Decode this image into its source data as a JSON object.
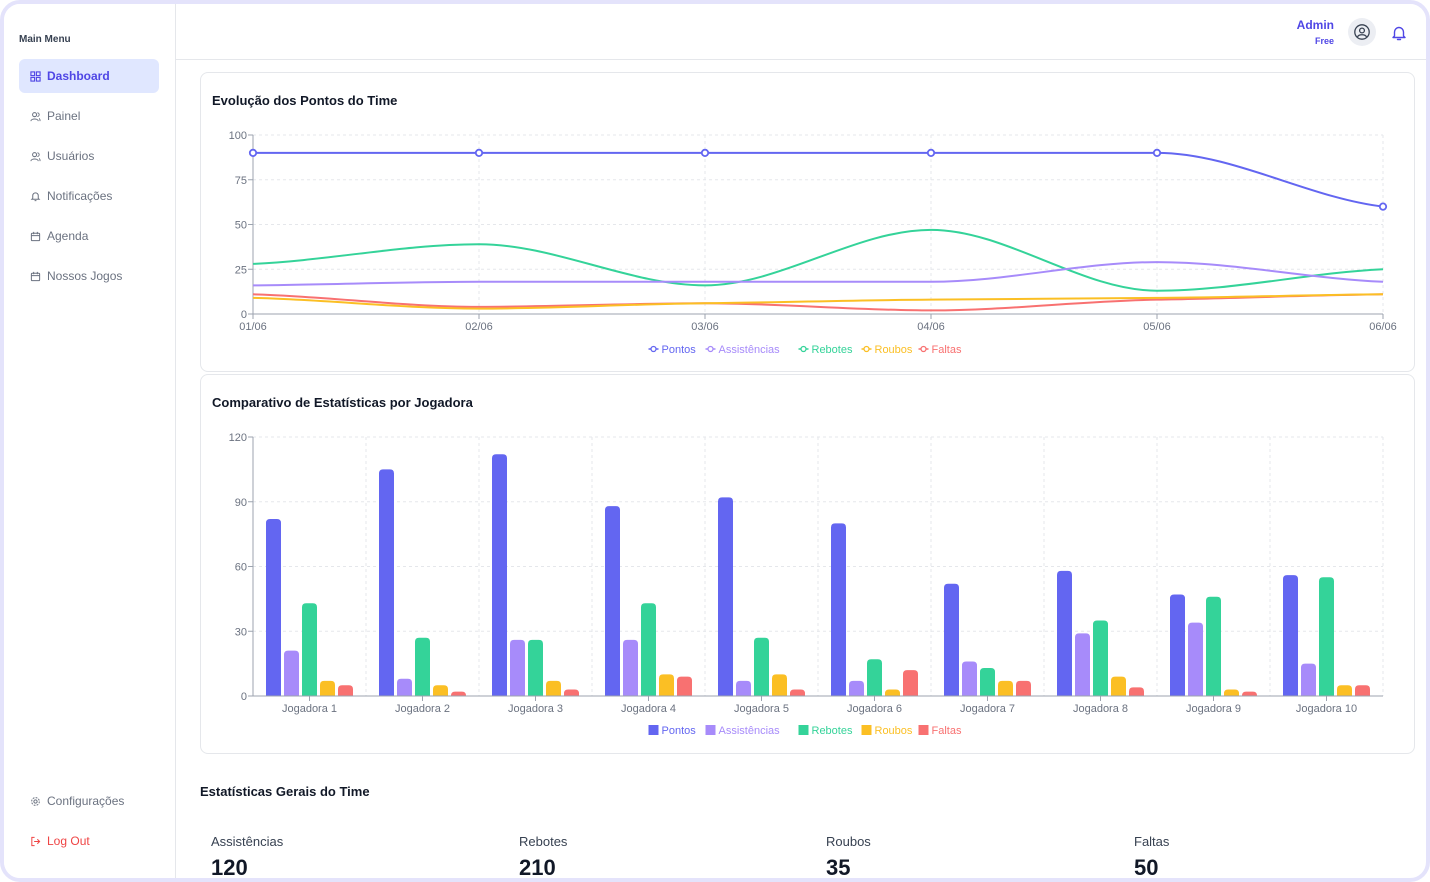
{
  "sidebar": {
    "title": "Main Menu",
    "items": [
      {
        "label": "Dashboard",
        "icon": "grid-icon",
        "active": true
      },
      {
        "label": "Painel",
        "icon": "users-icon"
      },
      {
        "label": "Usuários",
        "icon": "users-icon"
      },
      {
        "label": "Notificações",
        "icon": "bell-icon"
      },
      {
        "label": "Agenda",
        "icon": "calendar-icon"
      },
      {
        "label": "Nossos Jogos",
        "icon": "calendar-icon"
      }
    ],
    "bottom": [
      {
        "label": "Configurações",
        "icon": "gear-icon"
      },
      {
        "label": "Log Out",
        "icon": "logout-icon"
      }
    ]
  },
  "header": {
    "user_name": "Admin",
    "plan": "Free",
    "avatar_icon": "user-circle-icon",
    "bell_icon": "bell-icon"
  },
  "colors": {
    "Pontos": "#6366f1",
    "Assistências": "#a78bfa",
    "Rebotes": "#34d399",
    "Roubos": "#fbbf24",
    "Faltas": "#f87171"
  },
  "line_chart": {
    "title": "Evolução dos Pontos do Time"
  },
  "bar_chart": {
    "title": "Comparativo de Estatísticas por Jogadora"
  },
  "chart_data": [
    {
      "type": "line",
      "title": "Evolução dos Pontos do Time",
      "categories": [
        "01/06",
        "02/06",
        "03/06",
        "04/06",
        "05/06",
        "06/06"
      ],
      "ylim": [
        0,
        100
      ],
      "yticks": [
        0,
        25,
        50,
        75,
        100
      ],
      "grid": true,
      "legend": "bottom",
      "series": [
        {
          "name": "Pontos",
          "values": [
            90,
            90,
            90,
            90,
            90,
            60
          ]
        },
        {
          "name": "Assistências",
          "values": [
            16,
            18,
            18,
            18,
            29,
            18
          ]
        },
        {
          "name": "Rebotes",
          "values": [
            28,
            39,
            16,
            47,
            13,
            25
          ]
        },
        {
          "name": "Roubos",
          "values": [
            9,
            3,
            6,
            8,
            9,
            11
          ]
        },
        {
          "name": "Faltas",
          "values": [
            11,
            4,
            6,
            2,
            8,
            11
          ]
        }
      ]
    },
    {
      "type": "bar",
      "title": "Comparativo de Estatísticas por Jogadora",
      "categories": [
        "Jogadora 1",
        "Jogadora 2",
        "Jogadora 3",
        "Jogadora 4",
        "Jogadora 5",
        "Jogadora 6",
        "Jogadora 7",
        "Jogadora 8",
        "Jogadora 9",
        "Jogadora 10"
      ],
      "ylim": [
        0,
        120
      ],
      "yticks": [
        0,
        30,
        60,
        90,
        120
      ],
      "grid": true,
      "legend": "bottom",
      "series": [
        {
          "name": "Pontos",
          "values": [
            82,
            105,
            112,
            88,
            92,
            80,
            52,
            58,
            47,
            56
          ]
        },
        {
          "name": "Assistências",
          "values": [
            21,
            8,
            26,
            26,
            7,
            7,
            16,
            29,
            34,
            15
          ]
        },
        {
          "name": "Rebotes",
          "values": [
            43,
            27,
            26,
            43,
            27,
            17,
            13,
            35,
            46,
            55
          ]
        },
        {
          "name": "Roubos",
          "values": [
            7,
            5,
            7,
            10,
            10,
            3,
            7,
            9,
            3,
            5
          ]
        },
        {
          "name": "Faltas",
          "values": [
            5,
            2,
            3,
            9,
            3,
            12,
            7,
            4,
            2,
            5
          ]
        }
      ]
    }
  ],
  "team_stats": {
    "title": "Estatísticas Gerais do Time",
    "items": [
      {
        "label": "Assistências",
        "value": "120"
      },
      {
        "label": "Rebotes",
        "value": "210"
      },
      {
        "label": "Roubos",
        "value": "35"
      },
      {
        "label": "Faltas",
        "value": "50"
      }
    ]
  }
}
